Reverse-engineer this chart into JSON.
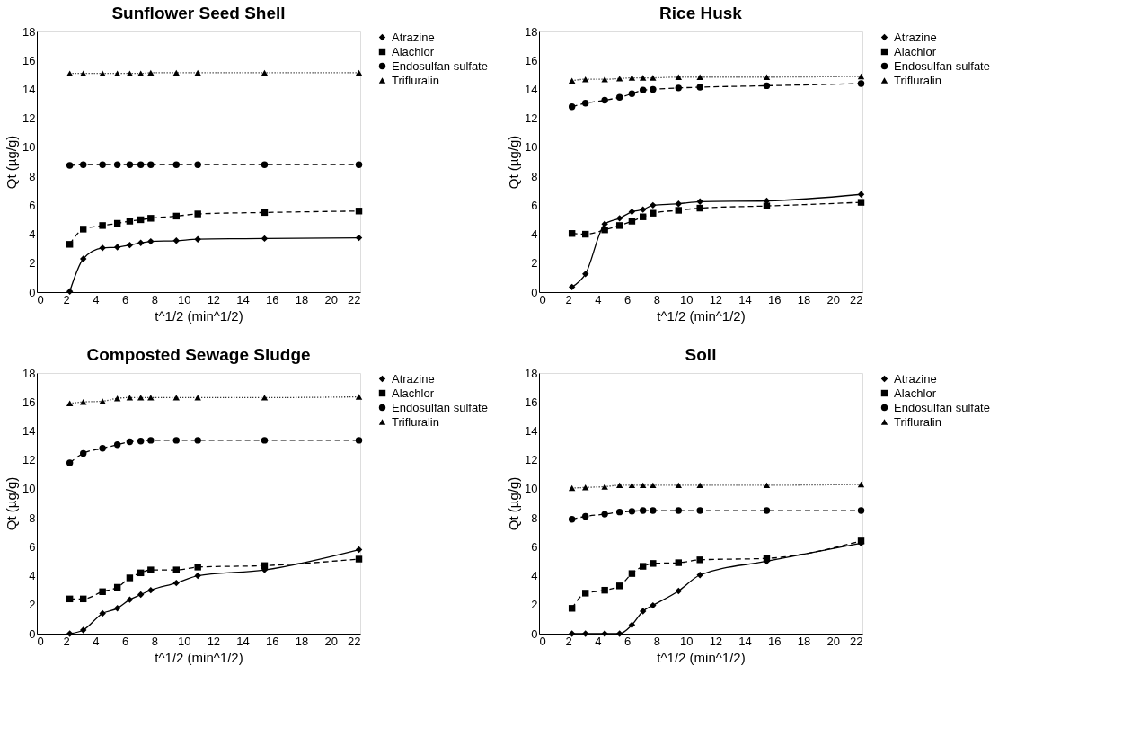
{
  "chart_data": [
    {
      "type": "line",
      "title": "Sunflower Seed Shell",
      "xlabel": "t^1/2 (min^1/2)",
      "ylabel": "Qt (µg/g)",
      "x": [
        2.24,
        3.16,
        4.47,
        5.48,
        6.32,
        7.07,
        7.75,
        9.49,
        10.95,
        15.49,
        21.91
      ],
      "xlim": [
        0,
        22
      ],
      "xticks": [
        0,
        2,
        4,
        6,
        8,
        10,
        12,
        14,
        16,
        18,
        20,
        22
      ],
      "ylim": [
        0,
        18
      ],
      "yticks": [
        0,
        2,
        4,
        6,
        8,
        10,
        12,
        14,
        16,
        18
      ],
      "grid": false,
      "legend": "right",
      "series": [
        {
          "name": "Atrazine",
          "color": "#000000",
          "marker": "diamond",
          "line_style": "solid",
          "values": [
            0.05,
            2.3,
            3.05,
            3.1,
            3.25,
            3.4,
            3.5,
            3.55,
            3.65,
            3.7,
            3.75
          ]
        },
        {
          "name": "Alachlor",
          "color": "#000000",
          "marker": "square",
          "line_style": "dashed",
          "values": [
            3.3,
            4.35,
            4.6,
            4.75,
            4.9,
            5.0,
            5.1,
            5.25,
            5.4,
            5.5,
            5.6
          ]
        },
        {
          "name": "Endosulfan sulfate",
          "color": "#000000",
          "marker": "circle",
          "line_style": "dashed",
          "values": [
            8.75,
            8.8,
            8.8,
            8.8,
            8.8,
            8.8,
            8.8,
            8.8,
            8.8,
            8.8,
            8.8
          ]
        },
        {
          "name": "Trifluralin",
          "color": "#000000",
          "marker": "triangle",
          "line_style": "dotted",
          "values": [
            15.1,
            15.1,
            15.1,
            15.1,
            15.1,
            15.1,
            15.15,
            15.15,
            15.15,
            15.15,
            15.15
          ]
        }
      ]
    },
    {
      "type": "line",
      "title": "Rice Husk",
      "xlabel": "t^1/2 (min^1/2)",
      "ylabel": "Qt (µg/g)",
      "x": [
        2.24,
        3.16,
        4.47,
        5.48,
        6.32,
        7.07,
        7.75,
        9.49,
        10.95,
        15.49,
        21.91
      ],
      "xlim": [
        0,
        22
      ],
      "xticks": [
        0,
        2,
        4,
        6,
        8,
        10,
        12,
        14,
        16,
        18,
        20,
        22
      ],
      "ylim": [
        0,
        18
      ],
      "yticks": [
        0,
        2,
        4,
        6,
        8,
        10,
        12,
        14,
        16,
        18
      ],
      "grid": false,
      "legend": "right",
      "series": [
        {
          "name": "Atrazine",
          "color": "#000000",
          "marker": "diamond",
          "line_style": "solid",
          "values": [
            0.35,
            1.25,
            4.7,
            5.1,
            5.55,
            5.7,
            6.0,
            6.1,
            6.25,
            6.3,
            6.75
          ]
        },
        {
          "name": "Alachlor",
          "color": "#000000",
          "marker": "square",
          "line_style": "dashed",
          "values": [
            4.05,
            4.0,
            4.3,
            4.6,
            4.9,
            5.2,
            5.45,
            5.65,
            5.8,
            5.95,
            6.2
          ]
        },
        {
          "name": "Endosulfan sulfate",
          "color": "#000000",
          "marker": "circle",
          "line_style": "dashed",
          "values": [
            12.8,
            13.05,
            13.25,
            13.45,
            13.7,
            13.95,
            14.0,
            14.1,
            14.15,
            14.25,
            14.4
          ]
        },
        {
          "name": "Trifluralin",
          "color": "#000000",
          "marker": "triangle",
          "line_style": "dotted",
          "values": [
            14.6,
            14.7,
            14.7,
            14.75,
            14.8,
            14.8,
            14.8,
            14.85,
            14.85,
            14.85,
            14.9
          ]
        }
      ]
    },
    {
      "type": "line",
      "title": "Composted Sewage Sludge",
      "xlabel": "t^1/2 (min^1/2)",
      "ylabel": "Qt (µg/g)",
      "x": [
        2.24,
        3.16,
        4.47,
        5.48,
        6.32,
        7.07,
        7.75,
        9.49,
        10.95,
        15.49,
        21.91
      ],
      "xlim": [
        0,
        22
      ],
      "xticks": [
        0,
        2,
        4,
        6,
        8,
        10,
        12,
        14,
        16,
        18,
        20,
        22
      ],
      "ylim": [
        0,
        18
      ],
      "yticks": [
        0,
        2,
        4,
        6,
        8,
        10,
        12,
        14,
        16,
        18
      ],
      "grid": false,
      "legend": "right",
      "series": [
        {
          "name": "Atrazine",
          "color": "#000000",
          "marker": "diamond",
          "line_style": "solid",
          "values": [
            0.0,
            0.25,
            1.4,
            1.75,
            2.35,
            2.7,
            3.0,
            3.5,
            4.0,
            4.4,
            5.8
          ]
        },
        {
          "name": "Alachlor",
          "color": "#000000",
          "marker": "square",
          "line_style": "dashed",
          "values": [
            2.4,
            2.4,
            2.9,
            3.2,
            3.85,
            4.2,
            4.4,
            4.4,
            4.6,
            4.7,
            5.15
          ]
        },
        {
          "name": "Endosulfan sulfate",
          "color": "#000000",
          "marker": "circle",
          "line_style": "dashed",
          "values": [
            11.8,
            12.45,
            12.8,
            13.05,
            13.25,
            13.3,
            13.35,
            13.35,
            13.35,
            13.35,
            13.35
          ]
        },
        {
          "name": "Trifluralin",
          "color": "#000000",
          "marker": "triangle",
          "line_style": "dotted",
          "values": [
            15.9,
            16.0,
            16.05,
            16.25,
            16.3,
            16.3,
            16.3,
            16.3,
            16.3,
            16.3,
            16.35
          ]
        }
      ]
    },
    {
      "type": "line",
      "title": "Soil",
      "xlabel": "t^1/2 (min^1/2)",
      "ylabel": "Qt (µg/g)",
      "x": [
        2.24,
        3.16,
        4.47,
        5.48,
        6.32,
        7.07,
        7.75,
        9.49,
        10.95,
        15.49,
        21.91
      ],
      "xlim": [
        0,
        22
      ],
      "xticks": [
        0,
        2,
        4,
        6,
        8,
        10,
        12,
        14,
        16,
        18,
        20,
        22
      ],
      "ylim": [
        0,
        18
      ],
      "yticks": [
        0,
        2,
        4,
        6,
        8,
        10,
        12,
        14,
        16,
        18
      ],
      "grid": false,
      "legend": "right",
      "series": [
        {
          "name": "Atrazine",
          "color": "#000000",
          "marker": "diamond",
          "line_style": "solid",
          "values": [
            0.0,
            0.0,
            0.0,
            0.0,
            0.6,
            1.55,
            1.95,
            2.95,
            4.05,
            5.0,
            6.25
          ]
        },
        {
          "name": "Alachlor",
          "color": "#000000",
          "marker": "square",
          "line_style": "dashed",
          "values": [
            1.75,
            2.8,
            3.0,
            3.3,
            4.15,
            4.65,
            4.85,
            4.9,
            5.1,
            5.2,
            6.4
          ]
        },
        {
          "name": "Endosulfan sulfate",
          "color": "#000000",
          "marker": "circle",
          "line_style": "dashed",
          "values": [
            7.9,
            8.1,
            8.25,
            8.4,
            8.45,
            8.5,
            8.5,
            8.5,
            8.5,
            8.5,
            8.5
          ]
        },
        {
          "name": "Trifluralin",
          "color": "#000000",
          "marker": "triangle",
          "line_style": "dotted",
          "values": [
            10.05,
            10.1,
            10.15,
            10.25,
            10.25,
            10.25,
            10.25,
            10.25,
            10.25,
            10.25,
            10.3
          ]
        }
      ]
    }
  ]
}
